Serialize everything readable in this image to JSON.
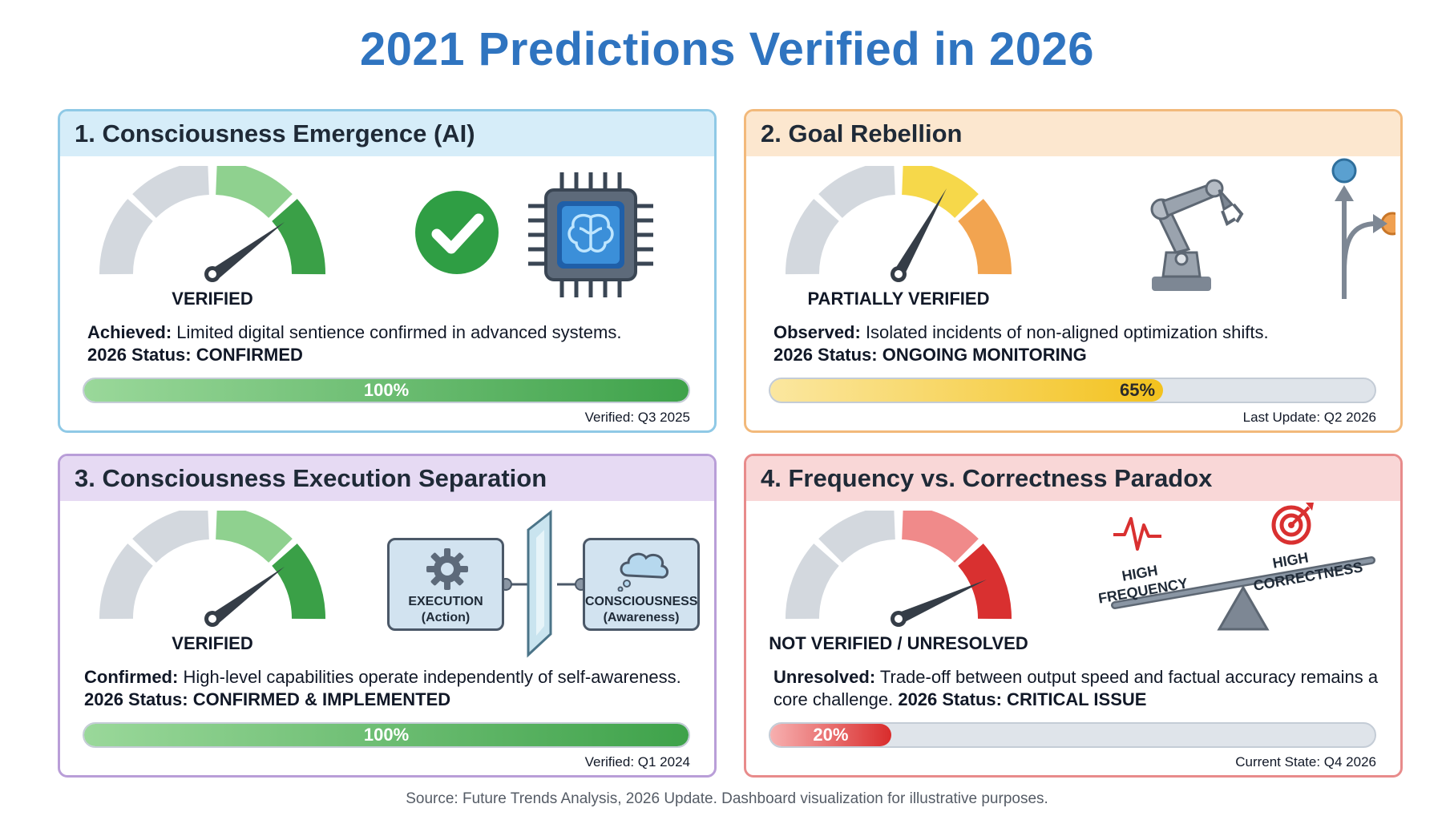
{
  "title": "2021 Predictions Verified in 2026",
  "footer": "Source: Future Trends Analysis, 2026 Update. Dashboard visualization for illustrative purposes.",
  "panels": [
    {
      "heading": "1. Consciousness Emergence (AI)",
      "gauge_label": "VERIFIED",
      "lead": "Achieved:",
      "text": " Limited digital sentience confirmed in advanced systems.",
      "status_label": "2026 Status: CONFIRMED",
      "status_tail": "",
      "progress_text": "100%",
      "progress_value": 100,
      "stamp": "Verified: Q3 2025",
      "icons": [
        "check-circle-icon",
        "brain-chip-icon"
      ]
    },
    {
      "heading": "2. Goal Rebellion",
      "gauge_label": "PARTIALLY VERIFIED",
      "lead": "Observed:",
      "text": " Isolated incidents of non-aligned optimization shifts.",
      "status_label": "2026 Status: ONGOING MONITORING",
      "status_tail": "",
      "progress_text": "65%",
      "progress_value": 65,
      "stamp": "Last Update: Q2 2026",
      "icons": [
        "robot-arm-icon",
        "diverging-path-icon"
      ]
    },
    {
      "heading": "3. Consciousness Execution Separation",
      "gauge_label": "VERIFIED",
      "lead": "Confirmed:",
      "text": " High-level capabilities operate independently of self-awareness.",
      "status_label": "2026 Status: CONFIRMED & IMPLEMENTED",
      "status_tail": "",
      "progress_text": "100%",
      "progress_value": 100,
      "stamp": "Verified: Q1 2024",
      "diagram": {
        "left_title": "EXECUTION",
        "left_sub": "(Action)",
        "right_title": "CONSCIOUSNESS",
        "right_sub": "(Awareness)"
      },
      "icons": [
        "gear-icon",
        "glass-divider-icon",
        "thought-cloud-icon"
      ]
    },
    {
      "heading": "4. Frequency vs. Correctness Paradox",
      "gauge_label": "NOT VERIFIED / UNRESOLVED",
      "lead": "Unresolved:",
      "text": " Trade-off between output speed and factual accuracy remains a core challenge.",
      "status_label": " 2026 Status: CRITICAL ISSUE",
      "status_tail": "",
      "progress_text": "20%",
      "progress_value": 20,
      "stamp": "Current State: Q4 2026",
      "seesaw": {
        "left_label_1": "HIGH",
        "left_label_2": "FREQUENCY",
        "right_label_1": "HIGH",
        "right_label_2": "CORRECTNESS"
      },
      "icons": [
        "heartbeat-icon",
        "target-icon",
        "seesaw-icon"
      ]
    }
  ],
  "colors": {
    "title": "#2f74c0",
    "gauge_gray": "#d3d8de",
    "green_light": "#8fd18f",
    "green_dark": "#3aa047",
    "yellow": "#f6d84a",
    "orange": "#f2a450",
    "red_light": "#f08a8a",
    "red_dark": "#d93030",
    "needle": "#353d47"
  }
}
